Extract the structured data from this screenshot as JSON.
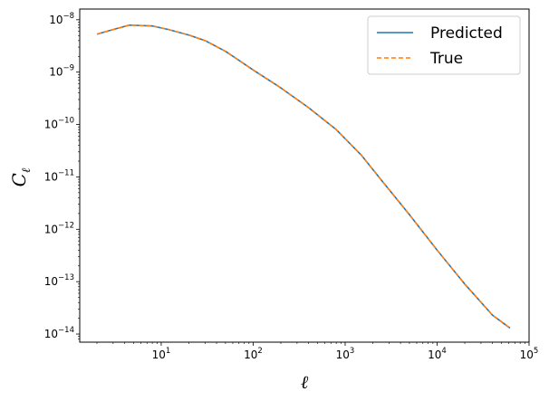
{
  "chart_data": {
    "type": "line",
    "title": "",
    "xlabel": "ℓ",
    "ylabel_main": "C",
    "ylabel_sub": "ℓ",
    "xscale": "log",
    "yscale": "log",
    "xlim": [
      1.3,
      100000
    ],
    "ylim": [
      7e-15,
      1.6e-08
    ],
    "grid": false,
    "legend_position": "top-right",
    "x_ticks": [
      {
        "value": 10,
        "base": "10",
        "exp": "1"
      },
      {
        "value": 100,
        "base": "10",
        "exp": "2"
      },
      {
        "value": 1000,
        "base": "10",
        "exp": "3"
      },
      {
        "value": 10000,
        "base": "10",
        "exp": "4"
      },
      {
        "value": 100000,
        "base": "10",
        "exp": "5"
      }
    ],
    "y_ticks": [
      {
        "value": 1e-14,
        "base": "10",
        "exp": "−14"
      },
      {
        "value": 1e-13,
        "base": "10",
        "exp": "−13"
      },
      {
        "value": 1e-12,
        "base": "10",
        "exp": "−12"
      },
      {
        "value": 1e-11,
        "base": "10",
        "exp": "−11"
      },
      {
        "value": 1e-10,
        "base": "10",
        "exp": "−10"
      },
      {
        "value": 1e-09,
        "base": "10",
        "exp": "−9"
      },
      {
        "value": 1e-08,
        "base": "10",
        "exp": "−8"
      }
    ],
    "series": [
      {
        "name": "Predicted",
        "color": "#1f77b4",
        "style": "solid",
        "x": [
          2,
          3,
          4.5,
          8,
          12,
          20,
          30,
          50,
          100,
          200,
          400,
          800,
          1500,
          2500,
          5000,
          10000,
          20000,
          40000,
          62000
        ],
        "y": [
          5.3e-09,
          6.5e-09,
          7.9e-09,
          7.6e-09,
          6.5e-09,
          5.1e-09,
          4e-09,
          2.5e-09,
          1.1e-09,
          5e-10,
          2.1e-10,
          8e-11,
          2.6e-11,
          8.5e-12,
          1.9e-12,
          4e-13,
          9e-14,
          2.3e-14,
          1.3e-14
        ]
      },
      {
        "name": "True",
        "color": "#ff7f0e",
        "style": "dashed",
        "x": [
          2,
          3,
          4.5,
          8,
          12,
          20,
          30,
          50,
          100,
          200,
          400,
          800,
          1500,
          2500,
          5000,
          10000,
          20000,
          40000,
          62000
        ],
        "y": [
          5.3e-09,
          6.5e-09,
          7.9e-09,
          7.6e-09,
          6.5e-09,
          5.1e-09,
          4e-09,
          2.5e-09,
          1.1e-09,
          5e-10,
          2.1e-10,
          8e-11,
          2.6e-11,
          8.5e-12,
          1.9e-12,
          4e-13,
          9e-14,
          2.3e-14,
          1.3e-14
        ]
      }
    ]
  }
}
